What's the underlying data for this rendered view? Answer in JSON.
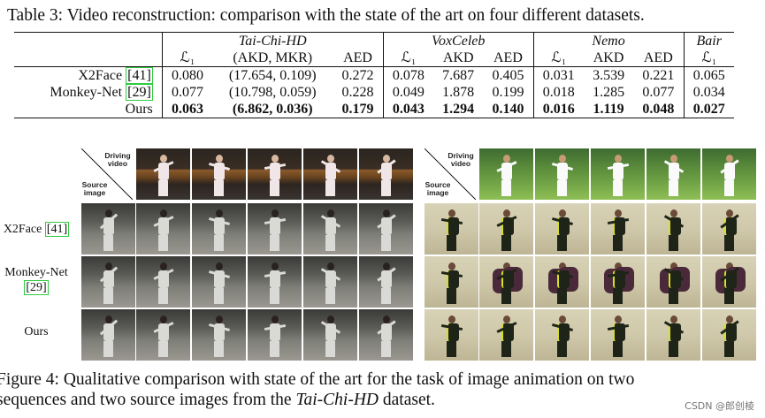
{
  "table_caption": "Table 3: Video reconstruction: comparison with the state of the art on four different datasets.",
  "table": {
    "datasets": [
      "Tai-Chi-HD",
      "VoxCeleb",
      "Nemo",
      "Bair"
    ],
    "columns": [
      "ℒ₁",
      "(AKD, MKR)",
      "AED",
      "ℒ₁",
      "AKD",
      "AED",
      "ℒ₁",
      "AKD",
      "AED",
      "ℒ₁"
    ],
    "rows": [
      {
        "method": "X2Face",
        "cite": "[41]",
        "values": [
          "0.080",
          "(17.654, 0.109)",
          "0.272",
          "0.078",
          "7.687",
          "0.405",
          "0.031",
          "3.539",
          "0.221",
          "0.065"
        ]
      },
      {
        "method": "Monkey-Net",
        "cite": "[29]",
        "values": [
          "0.077",
          "(10.798, 0.059)",
          "0.228",
          "0.049",
          "1.878",
          "0.199",
          "0.018",
          "1.285",
          "0.077",
          "0.034"
        ]
      },
      {
        "method": "Ours",
        "cite": "",
        "values": [
          "0.063",
          "(6.862, 0.036)",
          "0.179",
          "0.043",
          "1.294",
          "0.140",
          "0.016",
          "1.119",
          "0.048",
          "0.027"
        ]
      }
    ]
  },
  "figure": {
    "corner_driving": "Driving video",
    "corner_source": "Source image",
    "row_labels": [
      {
        "name": "X2Face",
        "cite": "[41]"
      },
      {
        "name": "Monkey-Net",
        "cite": "[29]"
      },
      {
        "name": "Ours",
        "cite": ""
      }
    ]
  },
  "figure_caption": {
    "part1": "Figure 4:  Qualitative comparison with state of the art for the task of image animation on two",
    "part2": "sequences and two source images from the ",
    "italic": "Tai-Chi-HD",
    "part3": " dataset."
  },
  "watermark": "CSDN @郎创棱"
}
